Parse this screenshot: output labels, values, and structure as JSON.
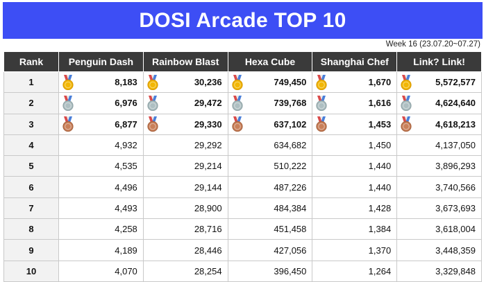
{
  "title": "DOSI Arcade TOP 10",
  "week_note": "Week 16 (23.07.20~07.27)",
  "colors": {
    "banner": "#3d4ef5",
    "header": "#3a3a3a",
    "gold": "#f2b705",
    "silver": "#aebfc2",
    "bronze": "#c9805a"
  },
  "columns": [
    "Rank",
    "Penguin Dash",
    "Rainbow Blast",
    "Hexa Cube",
    "Shanghai Chef",
    "Link? Link!"
  ],
  "rows": [
    {
      "rank": "1",
      "medal": "gold-medal-icon",
      "values": [
        "8,183",
        "30,236",
        "749,450",
        "1,670",
        "5,572,577"
      ]
    },
    {
      "rank": "2",
      "medal": "silver-medal-icon",
      "values": [
        "6,976",
        "29,472",
        "739,768",
        "1,616",
        "4,624,640"
      ]
    },
    {
      "rank": "3",
      "medal": "bronze-medal-icon",
      "values": [
        "6,877",
        "29,330",
        "637,102",
        "1,453",
        "4,618,213"
      ]
    },
    {
      "rank": "4",
      "values": [
        "4,932",
        "29,292",
        "634,682",
        "1,450",
        "4,137,050"
      ]
    },
    {
      "rank": "5",
      "values": [
        "4,535",
        "29,214",
        "510,222",
        "1,440",
        "3,896,293"
      ]
    },
    {
      "rank": "6",
      "values": [
        "4,496",
        "29,144",
        "487,226",
        "1,440",
        "3,740,566"
      ]
    },
    {
      "rank": "7",
      "values": [
        "4,493",
        "28,900",
        "484,384",
        "1,428",
        "3,673,693"
      ]
    },
    {
      "rank": "8",
      "values": [
        "4,258",
        "28,716",
        "451,458",
        "1,384",
        "3,618,004"
      ]
    },
    {
      "rank": "9",
      "values": [
        "4,189",
        "28,446",
        "427,056",
        "1,370",
        "3,448,359"
      ]
    },
    {
      "rank": "10",
      "values": [
        "4,070",
        "28,254",
        "396,450",
        "1,264",
        "3,329,848"
      ]
    }
  ]
}
